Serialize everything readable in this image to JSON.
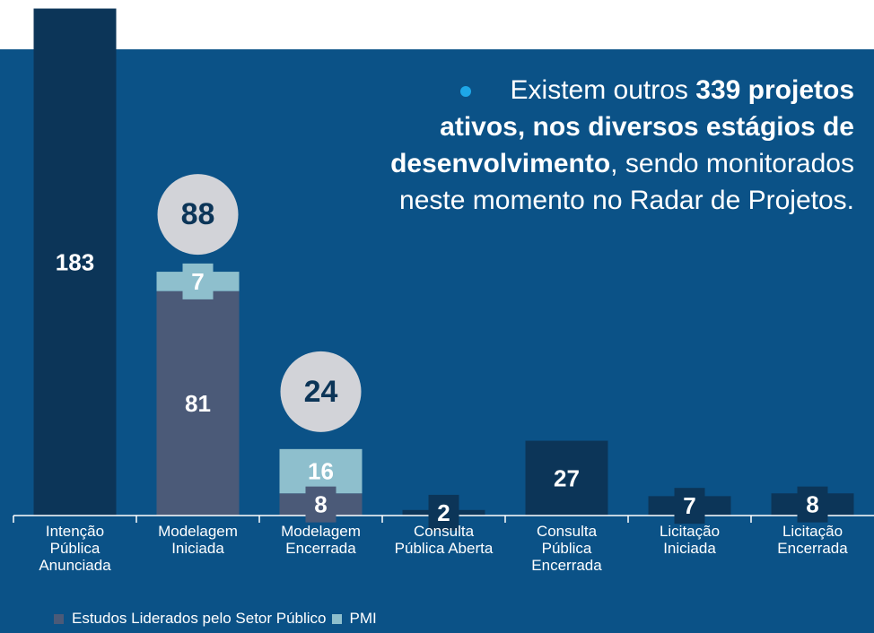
{
  "chart_data": {
    "type": "stacked_bar",
    "categories": [
      "Intenção\nPública\nAnunciada",
      "Modelagem\nIniciada",
      "Modelagem\nEncerrada",
      "Consulta\nPública Aberta",
      "Consulta\nPública\nEncerrada",
      "Licitação\nIniciada",
      "Licitação\nEncerrada"
    ],
    "series": [
      {
        "name": "Estudos Liderados pelo Setor Público",
        "color": "#4b5a78",
        "colors": [
          "#0c3558",
          "#4b5a78",
          "#4b5a78",
          "#0c3558",
          "#0c3558",
          "#0c3558",
          "#0c3558"
        ],
        "values": [
          183,
          81,
          8,
          2,
          27,
          7,
          8
        ]
      },
      {
        "name": "PMI",
        "color": "#8ebfcd",
        "values": [
          null,
          7,
          16,
          null,
          null,
          null,
          null
        ]
      }
    ],
    "totals": [
      null,
      88,
      24,
      null,
      null,
      null,
      null
    ],
    "annotation": [
      {
        "text": "Existem outros ",
        "bold": false
      },
      {
        "text": "339 projetos ativos, nos diversos estágios de desenvolvimento",
        "bold": true
      },
      {
        "text": ", sendo monitorados neste momento no Radar de Projetos.",
        "bold": false
      }
    ]
  }
}
